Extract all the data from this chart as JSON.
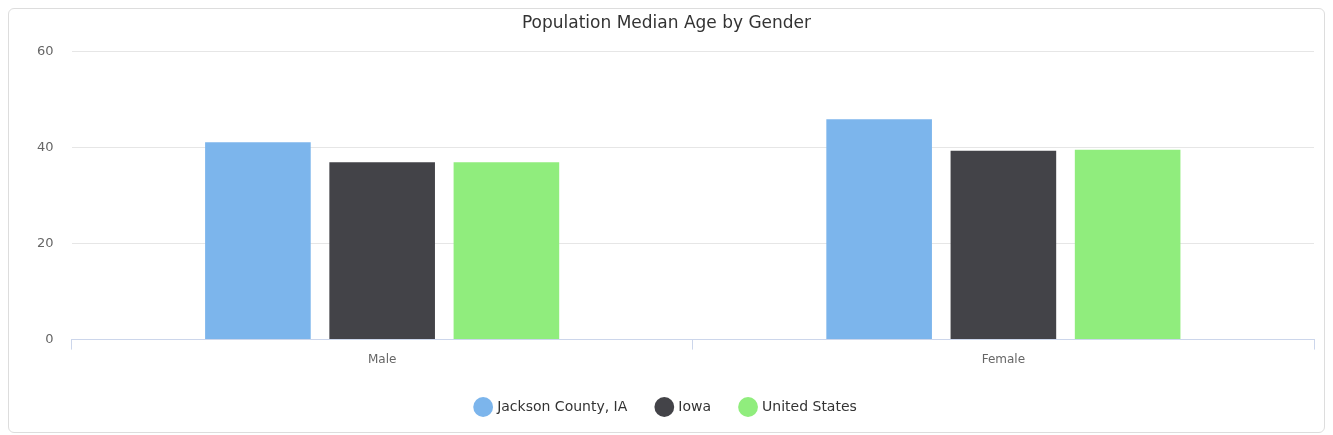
{
  "chart_data": {
    "type": "bar",
    "title": "Population Median Age by Gender",
    "categories": [
      "Male",
      "Female"
    ],
    "series": [
      {
        "name": "Jackson County, IA",
        "color": "#7cb5ec",
        "values": [
          41.1,
          45.9
        ]
      },
      {
        "name": "Iowa",
        "color": "#434348",
        "values": [
          36.9,
          39.3
        ]
      },
      {
        "name": "United States",
        "color": "#90ed7d",
        "values": [
          36.9,
          39.5
        ]
      }
    ],
    "ylim": [
      0,
      60
    ],
    "yticks": [
      0,
      20,
      40,
      60
    ],
    "grid": "y",
    "legend": "bottom"
  }
}
